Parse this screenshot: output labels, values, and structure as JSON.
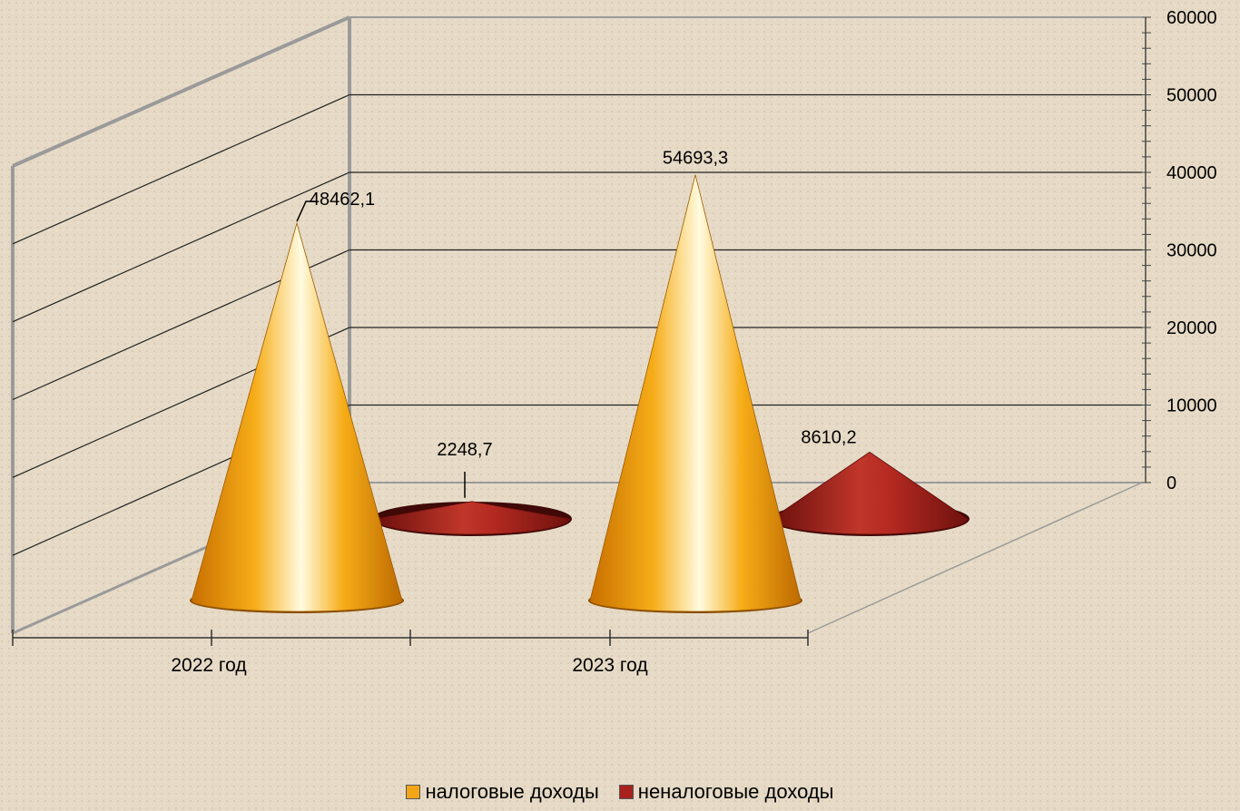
{
  "chart_data": {
    "type": "bar",
    "categories": [
      "2022 год",
      "2023 год"
    ],
    "series": [
      {
        "name": "налоговые доходы",
        "values": [
          48462.1,
          54693.3
        ],
        "labels": [
          "48462,1",
          "54693,3"
        ],
        "color": "#f2a516"
      },
      {
        "name": "неналоговые доходы",
        "values": [
          2248.7,
          8610.2
        ],
        "labels": [
          "2248,7",
          "8610,2"
        ],
        "color": "#a8211c"
      }
    ],
    "ylim": [
      0,
      60000
    ],
    "yticks": [
      "0",
      "10000",
      "20000",
      "30000",
      "40000",
      "50000",
      "60000"
    ],
    "grid": true,
    "legend": "bottom",
    "shape": "3d-cone"
  }
}
